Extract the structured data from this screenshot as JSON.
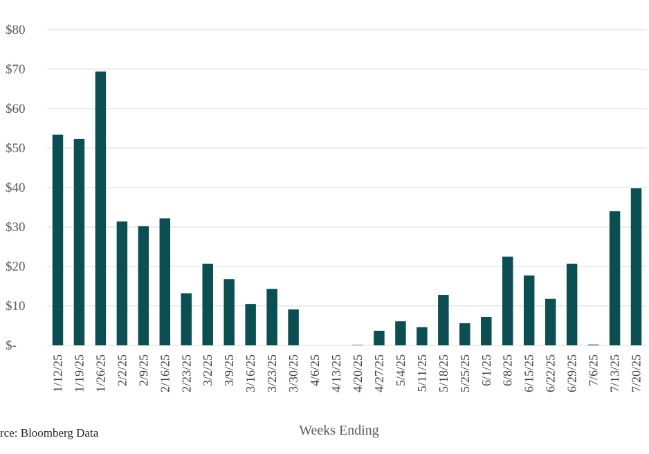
{
  "chart_data": {
    "type": "bar",
    "title": "",
    "xlabel": "Weeks Ending",
    "ylabel": "",
    "source": "rce: Bloomberg Data",
    "ylim": [
      0,
      80
    ],
    "yticks": [
      0,
      10,
      20,
      30,
      40,
      50,
      60,
      70,
      80
    ],
    "ytick_labels": [
      "$-",
      "$10",
      "$20",
      "$30",
      "$40",
      "$50",
      "$60",
      "$70",
      "$80"
    ],
    "grid": true,
    "legend": "none",
    "bar_color": "#0b4f53",
    "grid_color": "#d9d9d9",
    "categories": [
      "1/12/25",
      "1/19/25",
      "1/26/25",
      "2/2/25",
      "2/9/25",
      "2/16/25",
      "2/23/25",
      "3/2/25",
      "3/9/25",
      "3/16/25",
      "3/23/25",
      "3/30/25",
      "4/6/25",
      "4/13/25",
      "4/20/25",
      "4/27/25",
      "5/4/25",
      "5/11/25",
      "5/18/25",
      "5/25/25",
      "6/1/25",
      "6/8/25",
      "6/15/25",
      "6/22/25",
      "6/29/25",
      "7/6/25",
      "7/13/25",
      "7/20/25"
    ],
    "values": [
      53.4,
      52.3,
      69.4,
      31.4,
      30.2,
      32.2,
      13.2,
      20.7,
      16.8,
      10.5,
      14.3,
      9.1,
      0,
      0,
      0.1,
      3.7,
      6.1,
      4.6,
      12.8,
      5.6,
      7.2,
      22.5,
      17.7,
      11.8,
      20.7,
      0.2,
      34.0,
      39.8
    ]
  }
}
